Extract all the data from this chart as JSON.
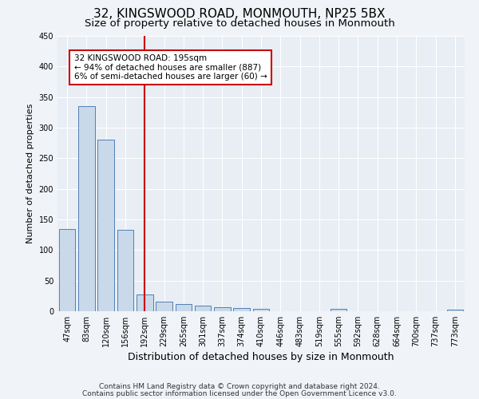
{
  "title1": "32, KINGSWOOD ROAD, MONMOUTH, NP25 5BX",
  "title2": "Size of property relative to detached houses in Monmouth",
  "xlabel": "Distribution of detached houses by size in Monmouth",
  "ylabel": "Number of detached properties",
  "categories": [
    "47sqm",
    "83sqm",
    "120sqm",
    "156sqm",
    "192sqm",
    "229sqm",
    "265sqm",
    "301sqm",
    "337sqm",
    "374sqm",
    "410sqm",
    "446sqm",
    "483sqm",
    "519sqm",
    "555sqm",
    "592sqm",
    "628sqm",
    "664sqm",
    "700sqm",
    "737sqm",
    "773sqm"
  ],
  "values": [
    135,
    335,
    280,
    133,
    27,
    16,
    12,
    9,
    6,
    5,
    4,
    0,
    0,
    0,
    4,
    0,
    0,
    0,
    0,
    0,
    3
  ],
  "bar_color": "#c9d9ea",
  "bar_edge_color": "#4f7fb5",
  "vline_color": "#cc0000",
  "vline_x_index": 4,
  "annotation_text": "32 KINGSWOOD ROAD: 195sqm\n← 94% of detached houses are smaller (887)\n6% of semi-detached houses are larger (60) →",
  "annotation_box_color": "#ffffff",
  "annotation_box_edge": "#cc0000",
  "ylim": [
    0,
    450
  ],
  "yticks": [
    0,
    50,
    100,
    150,
    200,
    250,
    300,
    350,
    400,
    450
  ],
  "footer1": "Contains HM Land Registry data © Crown copyright and database right 2024.",
  "footer2": "Contains public sector information licensed under the Open Government Licence v3.0.",
  "background_color": "#f0f4f8",
  "plot_bg_color": "#e8eef4",
  "grid_color": "#ffffff",
  "title1_fontsize": 11,
  "title2_fontsize": 9.5,
  "xlabel_fontsize": 9,
  "ylabel_fontsize": 8,
  "tick_fontsize": 7,
  "footer_fontsize": 6.5,
  "annotation_fontsize": 7.5
}
